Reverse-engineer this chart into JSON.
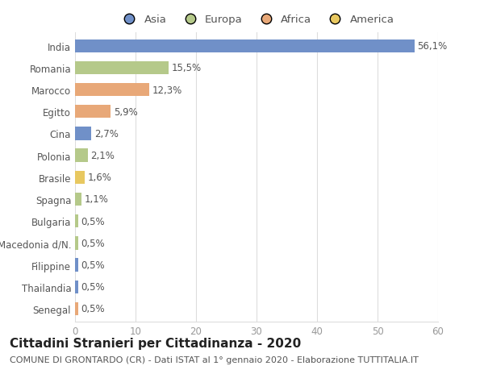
{
  "categories": [
    "India",
    "Romania",
    "Marocco",
    "Egitto",
    "Cina",
    "Polonia",
    "Brasile",
    "Spagna",
    "Bulgaria",
    "Macedonia d/N.",
    "Filippine",
    "Thailandia",
    "Senegal"
  ],
  "values": [
    56.1,
    15.5,
    12.3,
    5.9,
    2.7,
    2.1,
    1.6,
    1.1,
    0.5,
    0.5,
    0.5,
    0.5,
    0.5
  ],
  "labels": [
    "56,1%",
    "15,5%",
    "12,3%",
    "5,9%",
    "2,7%",
    "2,1%",
    "1,6%",
    "1,1%",
    "0,5%",
    "0,5%",
    "0,5%",
    "0,5%",
    "0,5%"
  ],
  "colors": [
    "#7090c8",
    "#b5c98a",
    "#e8a878",
    "#e8a878",
    "#7090c8",
    "#b5c98a",
    "#e8c860",
    "#b5c98a",
    "#b5c98a",
    "#b5c98a",
    "#7090c8",
    "#7090c8",
    "#e8a878"
  ],
  "legend_labels": [
    "Asia",
    "Europa",
    "Africa",
    "America"
  ],
  "legend_colors": [
    "#7090c8",
    "#b5c98a",
    "#e8a878",
    "#e8c860"
  ],
  "title": "Cittadini Stranieri per Cittadinanza - 2020",
  "subtitle": "COMUNE DI GRONTARDO (CR) - Dati ISTAT al 1° gennaio 2020 - Elaborazione TUTTITALIA.IT",
  "xlim": [
    0,
    60
  ],
  "xticks": [
    0,
    10,
    20,
    30,
    40,
    50,
    60
  ],
  "bg_color": "#ffffff",
  "grid_color": "#dddddd",
  "bar_height": 0.6,
  "label_fontsize": 8.5,
  "title_fontsize": 11,
  "subtitle_fontsize": 8,
  "tick_fontsize": 8.5,
  "legend_fontsize": 9.5
}
